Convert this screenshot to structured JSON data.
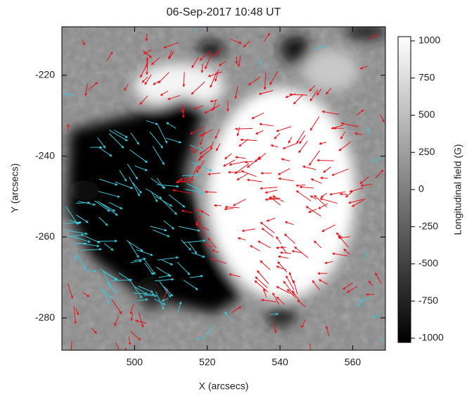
{
  "chart_data": {
    "type": "image",
    "title": "06-Sep-2017 10:48 UT",
    "xlabel": "X (arcsecs)",
    "ylabel": "Y (arcsecs)",
    "xlim": [
      480,
      569
    ],
    "ylim": [
      -288,
      -208
    ],
    "xticks": [
      500,
      520,
      540,
      560
    ],
    "yticks": [
      -220,
      -240,
      -260,
      -280
    ],
    "colorbar": {
      "label": "Longitudinal field (G)",
      "lim": [
        -1000,
        1000
      ],
      "ticks": [
        1000,
        750,
        500,
        250,
        0,
        -250,
        -500,
        -750,
        -1000
      ]
    }
  }
}
